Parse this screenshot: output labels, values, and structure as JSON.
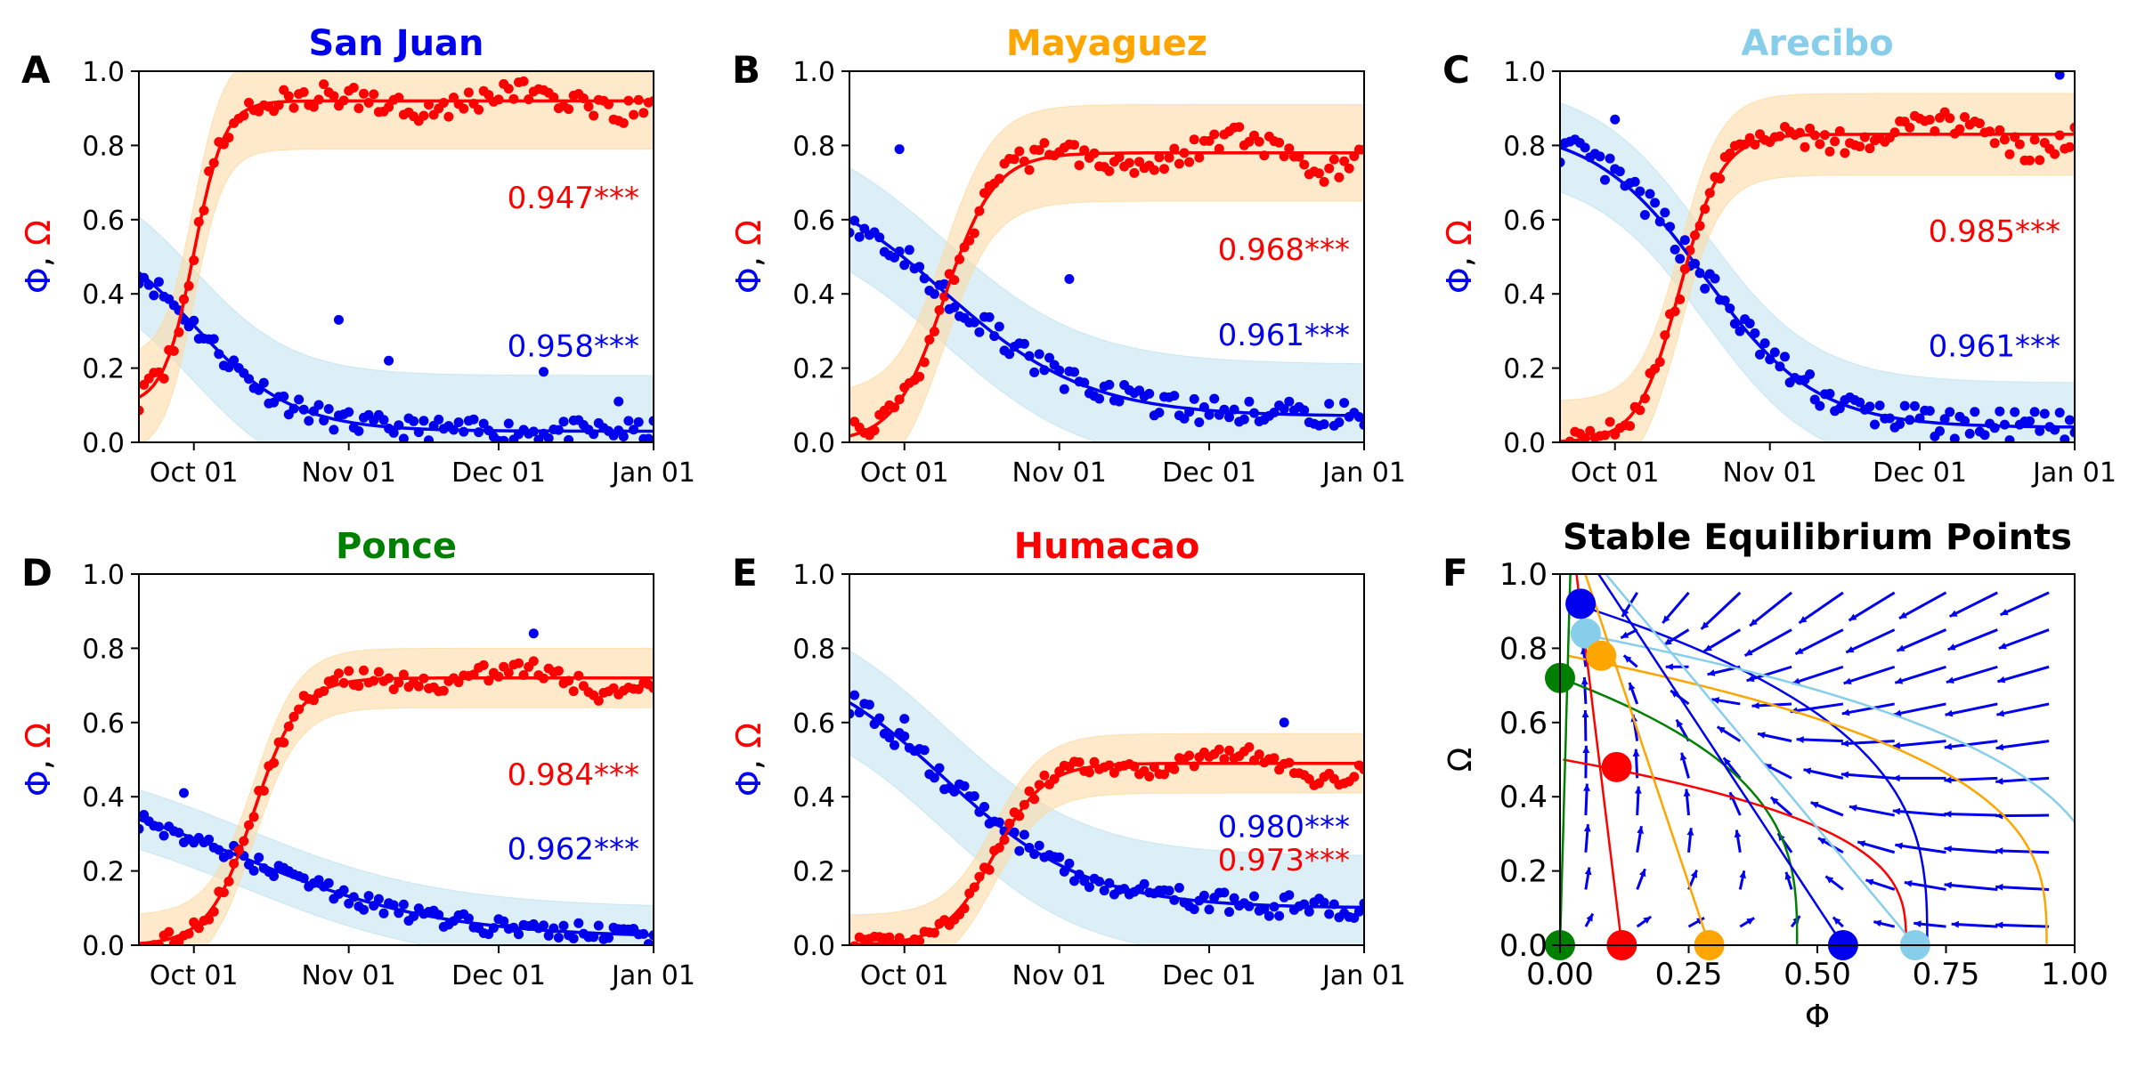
{
  "figure": {
    "domain_note": "multi-panel chart"
  },
  "chart_data": [
    {
      "panel": "A",
      "type": "line+scatter",
      "title": "San Juan",
      "title_color": "#0000ee",
      "ylabel_omega": "Ω",
      "ylabel_sep": ",",
      "ylabel_phi": "Φ",
      "xticks": [
        "Oct 01",
        "Nov 01",
        "Dec 01",
        "Jan 01"
      ],
      "xtick_days": [
        20,
        51,
        81,
        112
      ],
      "xlim": [
        9,
        112
      ],
      "ylim": [
        0,
        1
      ],
      "yticks": [
        "0.0",
        "0.2",
        "0.4",
        "0.6",
        "0.8",
        "1.0"
      ],
      "omega_r2": "0.947***",
      "phi_r2": "0.958***",
      "omega": {
        "start": 0.1,
        "end": 0.92,
        "mid": 20,
        "k": 0.33,
        "band": 0.13,
        "noise": 0.035,
        "wiggle": 0.04
      },
      "phi": {
        "start": 0.6,
        "end": 0.03,
        "mid": 20,
        "k": 0.1,
        "band": 0.15,
        "noise": 0.03,
        "outliers": [
          [
            49,
            0.33
          ],
          [
            59,
            0.22
          ],
          [
            90,
            0.19
          ],
          [
            105,
            0.11
          ]
        ]
      }
    },
    {
      "panel": "B",
      "type": "line+scatter",
      "title": "Mayaguez",
      "title_color": "#ffa500",
      "ylabel_omega": "Ω",
      "ylabel_sep": ",",
      "ylabel_phi": "Φ",
      "xticks": [
        "Oct 01",
        "Nov 01",
        "Dec 01",
        "Jan 01"
      ],
      "xtick_days": [
        20,
        51,
        81,
        112
      ],
      "xlim": [
        9,
        112
      ],
      "ylim": [
        0,
        1
      ],
      "yticks": [
        "0.0",
        "0.2",
        "0.4",
        "0.6",
        "0.8",
        "1.0"
      ],
      "omega_r2": "0.968***",
      "phi_r2": "0.961***",
      "omega": {
        "start": 0.0,
        "end": 0.78,
        "mid": 28,
        "k": 0.2,
        "band": 0.13,
        "noise": 0.035,
        "wiggle": 0.06
      },
      "phi": {
        "start": 0.74,
        "end": 0.07,
        "mid": 28,
        "k": 0.07,
        "band": 0.14,
        "noise": 0.035,
        "outliers": [
          [
            19,
            0.79
          ],
          [
            53,
            0.44
          ]
        ]
      }
    },
    {
      "panel": "C",
      "type": "line+scatter",
      "title": "Arecibo",
      "title_color": "#87ceeb",
      "ylabel_omega": "Ω",
      "ylabel_sep": ",",
      "ylabel_phi": "Φ",
      "xticks": [
        "Oct 01",
        "Nov 01",
        "Dec 01",
        "Jan 01"
      ],
      "xtick_days": [
        20,
        51,
        81,
        112
      ],
      "xlim": [
        9,
        112
      ],
      "ylim": [
        0,
        1
      ],
      "yticks": [
        "0.0",
        "0.2",
        "0.4",
        "0.6",
        "0.8",
        "1.0"
      ],
      "omega_r2": "0.985***",
      "phi_r2": "0.961***",
      "omega": {
        "start": 0.0,
        "end": 0.83,
        "mid": 33,
        "k": 0.24,
        "band": 0.11,
        "noise": 0.03,
        "wiggle": 0.05
      },
      "phi": {
        "start": 0.85,
        "end": 0.04,
        "mid": 38,
        "k": 0.09,
        "band": 0.12,
        "noise": 0.04,
        "outliers": [
          [
            20,
            0.87
          ],
          [
            109,
            0.99
          ]
        ]
      }
    },
    {
      "panel": "D",
      "type": "line+scatter",
      "title": "Ponce",
      "title_color": "#008000",
      "ylabel_omega": "Ω",
      "ylabel_sep": ",",
      "ylabel_phi": "Φ",
      "xticks": [
        "Oct 01",
        "Nov 01",
        "Dec 01",
        "Jan 01"
      ],
      "xtick_days": [
        20,
        51,
        81,
        112
      ],
      "xlim": [
        9,
        112
      ],
      "ylim": [
        0,
        1
      ],
      "yticks": [
        "0.0",
        "0.2",
        "0.4",
        "0.6",
        "0.8",
        "1.0"
      ],
      "omega_r2": "0.984***",
      "phi_r2": "0.962***",
      "omega": {
        "start": 0.0,
        "end": 0.72,
        "mid": 32,
        "k": 0.22,
        "band": 0.08,
        "noise": 0.025,
        "wiggle": 0.05
      },
      "phi": {
        "start": 0.45,
        "end": 0.02,
        "mid": 30,
        "k": 0.05,
        "band": 0.08,
        "noise": 0.025,
        "outliers": [
          [
            18,
            0.41
          ],
          [
            88,
            0.84
          ]
        ]
      }
    },
    {
      "panel": "E",
      "type": "line+scatter",
      "title": "Humacao",
      "title_color": "#ff0000",
      "ylabel_omega": "Ω",
      "ylabel_sep": ",",
      "ylabel_phi": "Φ",
      "xticks": [
        "Oct 01",
        "Nov 01",
        "Dec 01",
        "Jan 01"
      ],
      "xtick_days": [
        20,
        51,
        81,
        112
      ],
      "xlim": [
        9,
        112
      ],
      "ylim": [
        0,
        1
      ],
      "yticks": [
        "0.0",
        "0.2",
        "0.4",
        "0.6",
        "0.8",
        "1.0"
      ],
      "omega_r2": "0.973***",
      "phi_r2": "0.980***",
      "omega": {
        "start": 0.0,
        "end": 0.49,
        "mid": 38,
        "k": 0.2,
        "band": 0.08,
        "noise": 0.02,
        "wiggle": 0.05
      },
      "phi": {
        "start": 0.8,
        "end": 0.1,
        "mid": 28,
        "k": 0.07,
        "band": 0.14,
        "noise": 0.03,
        "outliers": [
          [
            20,
            0.61
          ],
          [
            96,
            0.6
          ]
        ]
      }
    },
    {
      "panel": "F",
      "type": "phase-portrait",
      "title": "Stable Equilibrium Points",
      "xlabel": "Φ",
      "ylabel": "Ω",
      "xlim": [
        0,
        1
      ],
      "ylim": [
        0,
        1
      ],
      "xticks": [
        "0.00",
        "0.25",
        "0.50",
        "0.75",
        "1.00"
      ],
      "yticks": [
        "0.0",
        "0.2",
        "0.4",
        "0.6",
        "0.8",
        "1.0"
      ],
      "omega_equilibria": [
        {
          "city": "San Juan",
          "color": "#0000ee",
          "x": 0.04,
          "y": 0.92
        },
        {
          "city": "Arecibo",
          "color": "#87ceeb",
          "x": 0.05,
          "y": 0.84
        },
        {
          "city": "Mayaguez",
          "color": "#ffa500",
          "x": 0.08,
          "y": 0.78
        },
        {
          "city": "Ponce",
          "color": "#008000",
          "x": 0.0,
          "y": 0.72
        },
        {
          "city": "Humacao",
          "color": "#ff0000",
          "x": 0.11,
          "y": 0.48
        }
      ],
      "phi_equilibria": [
        {
          "city": "Ponce",
          "color": "#008000",
          "x": 0.0,
          "y": 0.0
        },
        {
          "city": "Humacao",
          "color": "#ff0000",
          "x": 0.12,
          "y": 0.0
        },
        {
          "city": "Mayaguez",
          "color": "#ffa500",
          "x": 0.29,
          "y": 0.0
        },
        {
          "city": "San Juan",
          "color": "#0000ee",
          "x": 0.55,
          "y": 0.0
        },
        {
          "city": "Arecibo",
          "color": "#87ceeb",
          "x": 0.69,
          "y": 0.0
        }
      ],
      "nullclines_omega": [
        {
          "color": "#0000ee",
          "x0": 0.55,
          "y0": 0.92,
          "x_int": 0.7
        },
        {
          "color": "#87ceeb",
          "x0": 0.69,
          "y0": 0.84,
          "x_int": 1.05
        },
        {
          "color": "#ffa500",
          "x0": 0.29,
          "y0": 0.78,
          "x_int": 0.95
        },
        {
          "color": "#008000",
          "x0": 0.0,
          "y0": 0.72,
          "x_int": 0.47
        },
        {
          "color": "#ff0000",
          "x0": 0.12,
          "y0": 0.5,
          "x_int": 0.68
        }
      ]
    }
  ]
}
